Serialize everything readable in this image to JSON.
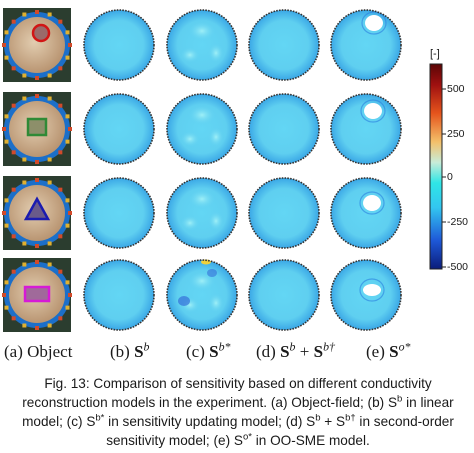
{
  "colorbar": {
    "unit": "[-]",
    "ticks": [
      "500",
      "250",
      "0",
      "-250",
      "-500"
    ],
    "stops": [
      "#0b1d7a",
      "#1e58d8",
      "#33c6f0",
      "#2fe6e6",
      "#c8ecd8",
      "#f3c06a",
      "#e5541c",
      "#9e1010",
      "#5b0606"
    ]
  },
  "columns": [
    {
      "letter": "(a)",
      "text": "Object"
    },
    {
      "letter": "(b)",
      "sym": "S",
      "sup": "b"
    },
    {
      "letter": "(c)",
      "sym": "S",
      "sup": "b*"
    },
    {
      "letter": "(d)",
      "sym": "S",
      "sup": "b",
      "plus": " + ",
      "sym2": "S",
      "sup2": "b†"
    },
    {
      "letter": "(e)",
      "sym": "S",
      "sup": "o*"
    }
  ],
  "rows": [
    {
      "shape": "circle",
      "outline": "#d11515"
    },
    {
      "shape": "square",
      "outline": "#2f8a36"
    },
    {
      "shape": "triangle",
      "outline": "#1b1bb0"
    },
    {
      "shape": "rectangle",
      "outline": "#d61ad6"
    }
  ],
  "caption": {
    "prefix": "Fig. 13: Comparison of sensitivity based on different conductivity reconstruction models in the experiment. (a) Object-field; (b) S",
    "sup1": "b",
    "mid1": " in linear model; (c) S",
    "sup2": "b*",
    "mid2": " in sensitivity updating model; (d) S",
    "sup3": "b",
    "mid3": " + S",
    "sup4": "b†",
    "mid4": " in second-order sensitivity model; (e) S",
    "sup5": "o*",
    "suffix": " in OO-SME model."
  }
}
